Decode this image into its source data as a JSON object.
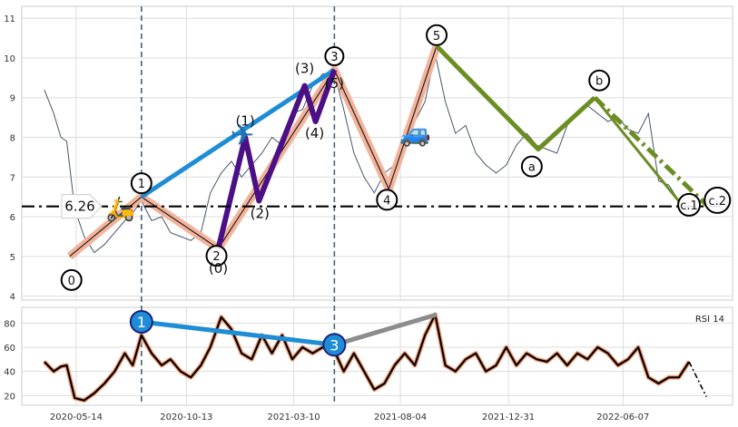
{
  "chart_data": [
    {
      "type": "line",
      "panel": "price",
      "ylim": [
        3.9,
        11.3
      ],
      "y_ticks": [
        "4",
        "5",
        "6",
        "7",
        "8",
        "9",
        "10",
        "11"
      ],
      "x_ticks": [
        "2020-05-14",
        "2020-10-13",
        "2021-03-10",
        "2021-08-04",
        "2021-12-31",
        "2022-06-07"
      ],
      "grid": true,
      "support_level": 6.26,
      "support_label": "6.26",
      "vertical_markers": [
        "2020-08-12",
        "2021-05-05"
      ],
      "price_series": {
        "name": "",
        "color": "#4a5568",
        "x": [
          "2020-03-31",
          "2020-04-13",
          "2020-04-23",
          "2020-05-01",
          "2020-05-12",
          "2020-05-25",
          "2020-06-08",
          "2020-06-22",
          "2020-07-06",
          "2020-07-20",
          "2020-07-31",
          "2020-08-12",
          "2020-08-26",
          "2020-09-09",
          "2020-09-21",
          "2020-10-05",
          "2020-10-19",
          "2020-11-02",
          "2020-11-15",
          "2020-11-30",
          "2020-12-14",
          "2020-12-28",
          "2021-01-11",
          "2021-01-25",
          "2021-02-08",
          "2021-02-22",
          "2021-03-08",
          "2021-03-22",
          "2021-04-05",
          "2021-04-19",
          "2021-05-05",
          "2021-05-18",
          "2021-06-01",
          "2021-06-15",
          "2021-06-29",
          "2021-07-13",
          "2021-07-27",
          "2021-08-10",
          "2021-08-24",
          "2021-09-07",
          "2021-09-21",
          "2021-10-05",
          "2021-10-19",
          "2021-11-02",
          "2021-11-16",
          "2021-11-30",
          "2021-12-14",
          "2021-12-28",
          "2022-01-11",
          "2022-01-25",
          "2022-02-08",
          "2022-02-22",
          "2022-03-08",
          "2022-03-22",
          "2022-04-05",
          "2022-04-19",
          "2022-05-03",
          "2022-05-17",
          "2022-05-31",
          "2022-06-14",
          "2022-06-28",
          "2022-07-12",
          "2022-07-26",
          "2022-08-09",
          "2022-08-23",
          "2022-09-06"
        ],
        "y": [
          9.2,
          8.6,
          8.0,
          7.9,
          6.2,
          5.5,
          5.1,
          5.3,
          5.6,
          5.9,
          6.1,
          6.4,
          5.9,
          6.0,
          5.6,
          5.5,
          5.4,
          5.6,
          6.6,
          7.1,
          7.4,
          7.0,
          7.3,
          7.6,
          8.0,
          7.8,
          8.6,
          8.7,
          9.3,
          9.6,
          9.6,
          8.7,
          7.6,
          7.0,
          6.6,
          7.1,
          7.3,
          8.2,
          8.4,
          8.9,
          10.1,
          8.9,
          8.1,
          8.3,
          7.6,
          7.3,
          7.1,
          7.3,
          7.8,
          8.1,
          7.8,
          7.7,
          7.6,
          8.3,
          8.6,
          8.8,
          8.6,
          8.4,
          8.5,
          8.2,
          8.1,
          8.6,
          6.9,
          6.8,
          6.4,
          6.5
        ]
      },
      "elliott_wave": {
        "points": [
          {
            "label": "0",
            "x": "2020-05-05",
            "y": 5.0
          },
          {
            "label": "1",
            "x": "2020-08-12",
            "y": 6.5
          },
          {
            "label": "2",
            "x": "2020-11-26",
            "y": 5.2
          },
          {
            "label": "3",
            "x": "2021-05-05",
            "y": 9.7
          },
          {
            "label": "4",
            "x": "2021-07-19",
            "y": 6.7
          },
          {
            "label": "5",
            "x": "2021-09-23",
            "y": 10.3
          }
        ],
        "corrective": [
          {
            "label": "a",
            "x": "2022-02-10",
            "y": 7.7
          },
          {
            "label": "b",
            "x": "2022-04-29",
            "y": 9.0
          },
          {
            "label": "c.1",
            "x": "2022-08-27",
            "y": 6.3
          },
          {
            "label": "c.2",
            "x": "2022-09-30",
            "y": 6.3
          }
        ],
        "subwave": [
          {
            "label": "(0)",
            "x": "2020-11-26",
            "y": 5.2
          },
          {
            "label": "(1)",
            "x": "2021-01-02",
            "y": 8.0
          },
          {
            "label": "(2)",
            "x": "2021-01-21",
            "y": 6.4
          },
          {
            "label": "(3)",
            "x": "2021-03-25",
            "y": 9.3
          },
          {
            "label": "(4)",
            "x": "2021-04-09",
            "y": 8.4
          },
          {
            "label": "(5)",
            "x": "2021-05-05",
            "y": 9.7
          }
        ],
        "trend_line": {
          "from": {
            "x": "2020-08-12",
            "y": 6.5
          },
          "to": {
            "x": "2021-05-05",
            "y": 9.7
          }
        },
        "colors": {
          "impulse": "#f4b39a",
          "trend": "#1f8dd6",
          "subwave": "#4b0f86",
          "corrective": "#6b8e23"
        }
      }
    },
    {
      "type": "line",
      "panel": "rsi",
      "ylim": [
        12,
        93
      ],
      "y_ticks": [
        "20",
        "40",
        "60",
        "80"
      ],
      "grid": true,
      "legend": "RSI 14",
      "series": {
        "name": "RSI 14",
        "color": "#000000",
        "halo": "#f4a07a",
        "x": [
          "2020-03-31",
          "2020-04-13",
          "2020-04-23",
          "2020-05-01",
          "2020-05-12",
          "2020-05-25",
          "2020-06-08",
          "2020-06-22",
          "2020-07-06",
          "2020-07-20",
          "2020-07-31",
          "2020-08-12",
          "2020-08-26",
          "2020-09-09",
          "2020-09-21",
          "2020-10-05",
          "2020-10-19",
          "2020-11-02",
          "2020-11-15",
          "2020-11-30",
          "2020-12-14",
          "2020-12-28",
          "2021-01-11",
          "2021-01-25",
          "2021-02-08",
          "2021-02-22",
          "2021-03-08",
          "2021-03-22",
          "2021-04-05",
          "2021-04-19",
          "2021-05-05",
          "2021-05-18",
          "2021-06-01",
          "2021-06-15",
          "2021-06-29",
          "2021-07-13",
          "2021-07-27",
          "2021-08-10",
          "2021-08-24",
          "2021-09-07",
          "2021-09-21",
          "2021-10-05",
          "2021-10-19",
          "2021-11-02",
          "2021-11-16",
          "2021-11-30",
          "2021-12-14",
          "2021-12-28",
          "2022-01-11",
          "2022-01-25",
          "2022-02-08",
          "2022-02-22",
          "2022-03-08",
          "2022-03-22",
          "2022-04-05",
          "2022-04-19",
          "2022-05-03",
          "2022-05-17",
          "2022-05-31",
          "2022-06-14",
          "2022-06-28",
          "2022-07-12",
          "2022-07-26",
          "2022-08-09",
          "2022-08-23",
          "2022-09-06"
        ],
        "y": [
          48,
          40,
          44,
          45,
          18,
          16,
          22,
          30,
          40,
          55,
          45,
          70,
          55,
          45,
          50,
          40,
          35,
          45,
          60,
          85,
          75,
          55,
          50,
          70,
          55,
          70,
          50,
          60,
          55,
          60,
          57,
          40,
          55,
          40,
          25,
          30,
          45,
          55,
          45,
          70,
          87,
          45,
          40,
          50,
          55,
          40,
          45,
          60,
          45,
          55,
          50,
          48,
          55,
          45,
          55,
          50,
          60,
          55,
          45,
          50,
          60,
          35,
          30,
          35,
          35,
          48
        ]
      },
      "divergence": [
        {
          "label": "1",
          "x": "2020-08-12",
          "y": 81
        },
        {
          "label": "3",
          "x": "2021-05-05",
          "y": 62
        }
      ],
      "divergence_extension": {
        "x": "2021-09-23",
        "y": 87
      },
      "forecast": {
        "x": [
          "2022-09-06",
          "2022-09-30"
        ],
        "y": [
          48,
          19
        ]
      }
    }
  ],
  "icons": {
    "moped": "moped-icon",
    "airplane": "airplane-icon",
    "car": "car-icon"
  }
}
